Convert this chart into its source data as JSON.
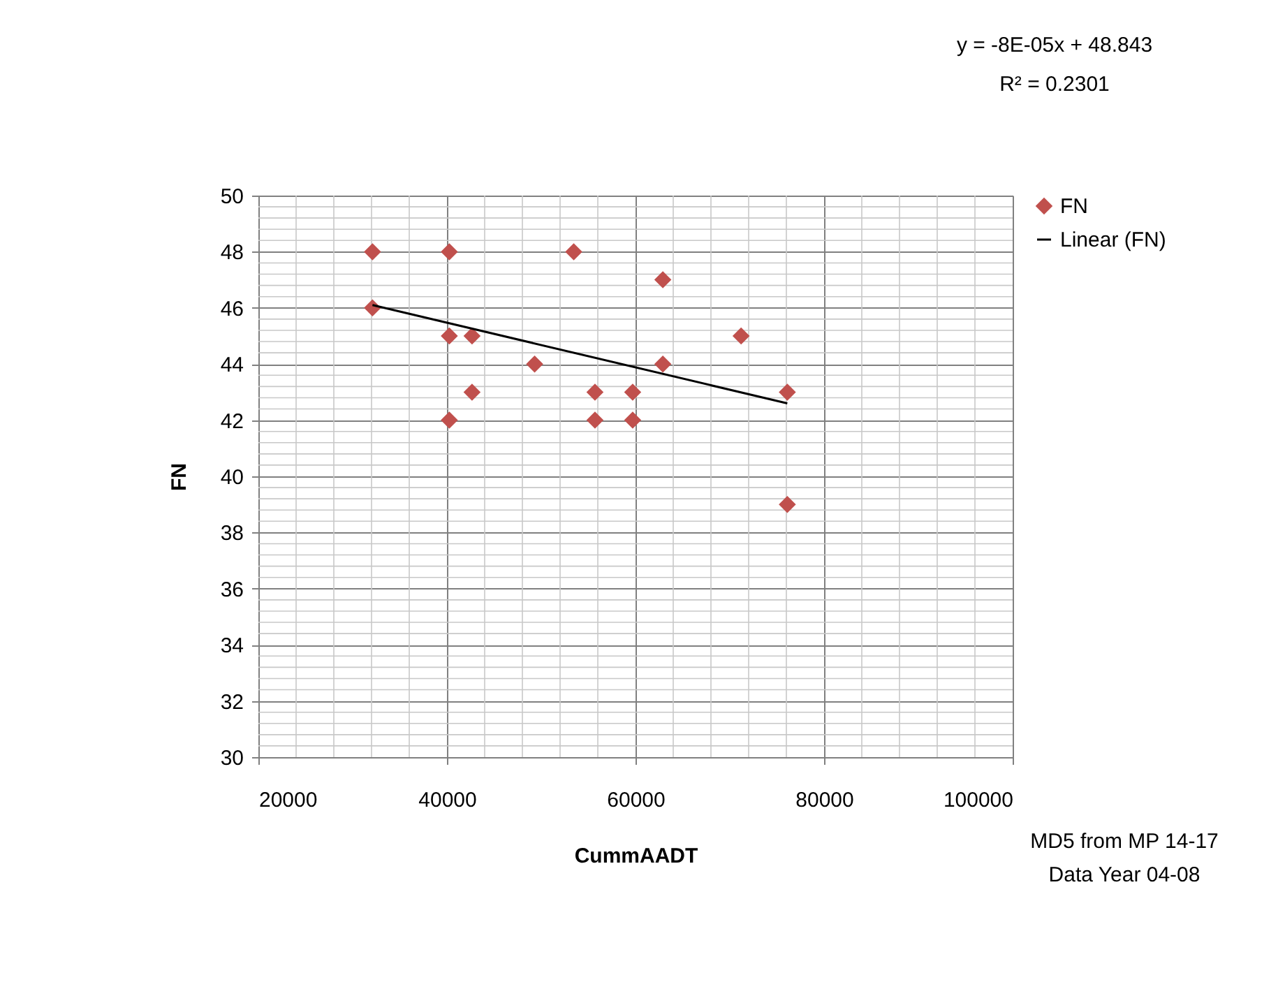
{
  "chart_data": {
    "type": "scatter",
    "xlabel": "CummAADT",
    "ylabel": "FN",
    "xlim": [
      20000,
      100000
    ],
    "xticks": [
      20000,
      40000,
      60000,
      80000,
      100000
    ],
    "ylim": [
      30,
      50
    ],
    "yticks": [
      30,
      32,
      34,
      36,
      38,
      40,
      42,
      44,
      46,
      48,
      50
    ],
    "grid": true,
    "legend": "right",
    "series": [
      {
        "name": "FN",
        "marker": "diamond",
        "color": "#c0504d",
        "x": [
          32100,
          32100,
          40250,
          40250,
          40250,
          42660,
          42660,
          49300,
          53450,
          55700,
          55700,
          59700,
          59700,
          62900,
          62900,
          71200,
          76100,
          76100
        ],
        "values": [
          48,
          46,
          48,
          45,
          42,
          45,
          43,
          44,
          48,
          43,
          42,
          43,
          42,
          47,
          44,
          45,
          43,
          39
        ]
      },
      {
        "name": "Linear (FN)",
        "type": "line",
        "color": "#000000",
        "line_style": "solid",
        "x": [
          32100,
          76100
        ],
        "values": [
          46.1,
          42.6
        ]
      }
    ],
    "annotations": [
      "y = -8E-05x + 48.843",
      "R² = 0.2301",
      "MD5 from MP 14-17",
      "Data Year 04-08"
    ]
  }
}
